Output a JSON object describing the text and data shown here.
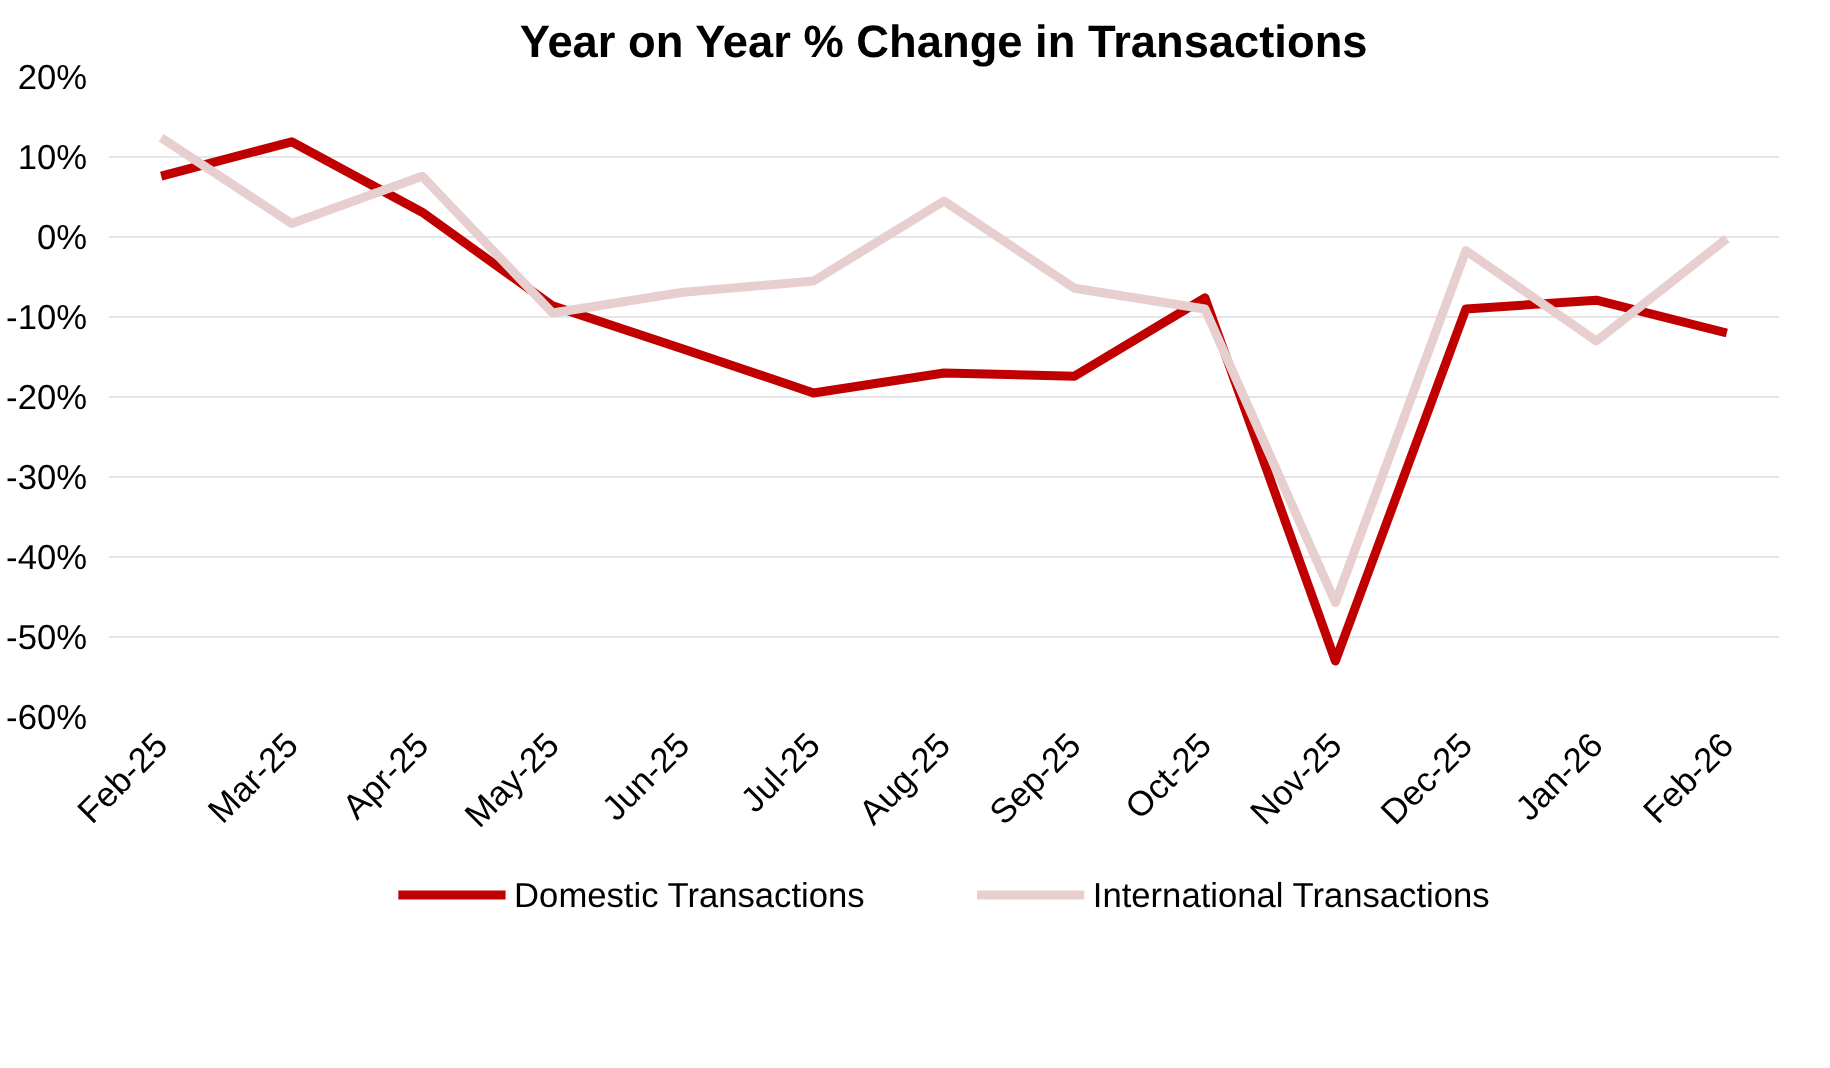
{
  "chart_data": {
    "type": "line",
    "title": "Year on Year % Change in Transactions",
    "categories": [
      "Feb-25",
      "Mar-25",
      "Apr-25",
      "May-25",
      "Jun-25",
      "Jul-25",
      "Aug-25",
      "Sep-25",
      "Oct-25",
      "Nov-25",
      "Dec-25",
      "Jan-26",
      "Feb-26"
    ],
    "series": [
      {
        "name": "Domestic Transactions",
        "color": "#c00000",
        "values": [
          7.6,
          11.9,
          3.1,
          -8.6,
          -14,
          -19.5,
          -17,
          -17.4,
          -7.6,
          -53,
          -9,
          -7.9,
          -12
        ]
      },
      {
        "name": "International Transactions",
        "color": "#e8cfcf",
        "values": [
          12.4,
          1.7,
          7.6,
          -9.5,
          -6.9,
          -5.5,
          4.5,
          -6.4,
          -9,
          -45.7,
          -1.7,
          -13,
          -0.2
        ]
      }
    ],
    "ylim": [
      -60,
      20
    ],
    "yticks": [
      {
        "value": -60,
        "label": "-60%"
      },
      {
        "value": -50,
        "label": "-50%"
      },
      {
        "value": -40,
        "label": "-40%"
      },
      {
        "value": -30,
        "label": "-30%"
      },
      {
        "value": -20,
        "label": "-20%"
      },
      {
        "value": -10,
        "label": "-10%"
      },
      {
        "value": 0,
        "label": "0%"
      },
      {
        "value": 10,
        "label": "10%"
      },
      {
        "value": 20,
        "label": "20%"
      }
    ],
    "grid": "y",
    "legend": "bottom",
    "line_style": "solid"
  }
}
